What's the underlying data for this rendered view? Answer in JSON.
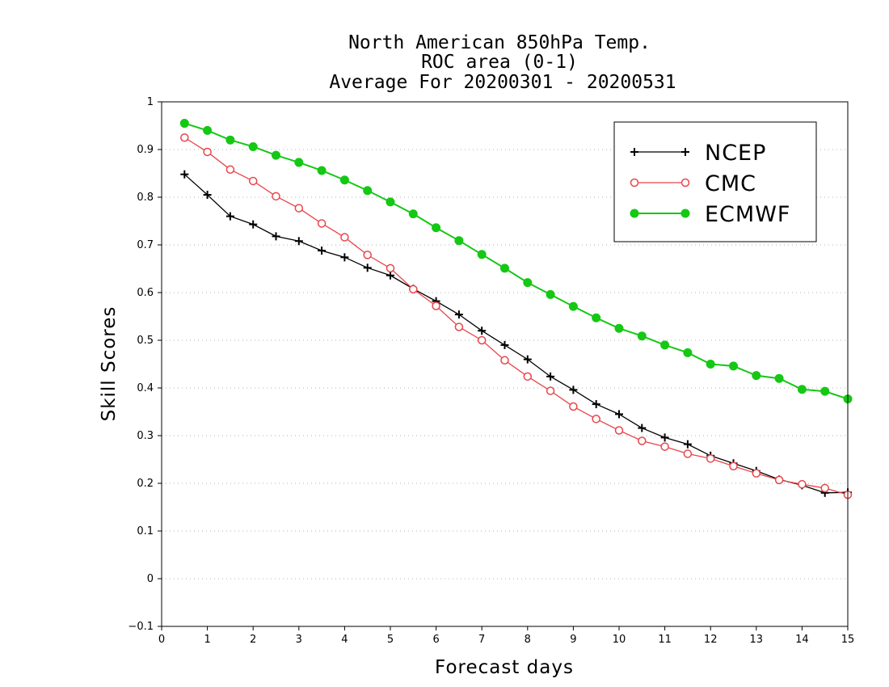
{
  "chart_data": {
    "type": "line",
    "title": [
      "North American 850hPa Temp.",
      "ROC area (0-1)",
      "Average For 20200301 - 20200531"
    ],
    "xlabel": "Forecast days",
    "ylabel": "Skill Scores",
    "xlim": [
      0,
      15
    ],
    "ylim": [
      -0.1,
      1
    ],
    "xticks": [
      "0",
      "1",
      "2",
      "3",
      "4",
      "5",
      "6",
      "7",
      "8",
      "9",
      "10",
      "11",
      "12",
      "13",
      "14",
      "15"
    ],
    "yticks": [
      "−0.1",
      "0",
      "0.1",
      "0.2",
      "0.3",
      "0.4",
      "0.5",
      "0.6",
      "0.7",
      "0.8",
      "0.9",
      "1"
    ],
    "grid": true,
    "legend_position": "top-right",
    "x": [
      0.5,
      1,
      1.5,
      2,
      2.5,
      3,
      3.5,
      4,
      4.5,
      5,
      5.5,
      6,
      6.5,
      7,
      7.5,
      8,
      8.5,
      9,
      9.5,
      10,
      10.5,
      11,
      11.5,
      12,
      12.5,
      13,
      13.5,
      14,
      14.5,
      15
    ],
    "series": [
      {
        "name": "NCEP",
        "color": "#000000",
        "marker": "plus",
        "values": [
          0.848,
          0.805,
          0.76,
          0.743,
          0.718,
          0.708,
          0.688,
          0.674,
          0.652,
          0.636,
          0.608,
          0.582,
          0.554,
          0.52,
          0.49,
          0.46,
          0.424,
          0.396,
          0.366,
          0.345,
          0.316,
          0.296,
          0.282,
          0.258,
          0.242,
          0.226,
          0.208,
          0.196,
          0.18,
          0.181
        ]
      },
      {
        "name": "CMC",
        "color": "#e8454a",
        "marker": "open-circle",
        "values": [
          0.925,
          0.895,
          0.858,
          0.834,
          0.802,
          0.777,
          0.745,
          0.716,
          0.679,
          0.651,
          0.607,
          0.572,
          0.528,
          0.5,
          0.458,
          0.424,
          0.394,
          0.361,
          0.335,
          0.311,
          0.289,
          0.277,
          0.262,
          0.252,
          0.236,
          0.221,
          0.207,
          0.198,
          0.19,
          0.176
        ]
      },
      {
        "name": "ECMWF",
        "color": "#14c814",
        "marker": "filled-circle",
        "values": [
          0.955,
          0.94,
          0.92,
          0.906,
          0.888,
          0.873,
          0.856,
          0.836,
          0.814,
          0.79,
          0.765,
          0.736,
          0.709,
          0.68,
          0.651,
          0.621,
          0.596,
          0.571,
          0.547,
          0.525,
          0.509,
          0.49,
          0.474,
          0.45,
          0.446,
          0.426,
          0.42,
          0.397,
          0.393,
          0.377
        ]
      }
    ]
  }
}
